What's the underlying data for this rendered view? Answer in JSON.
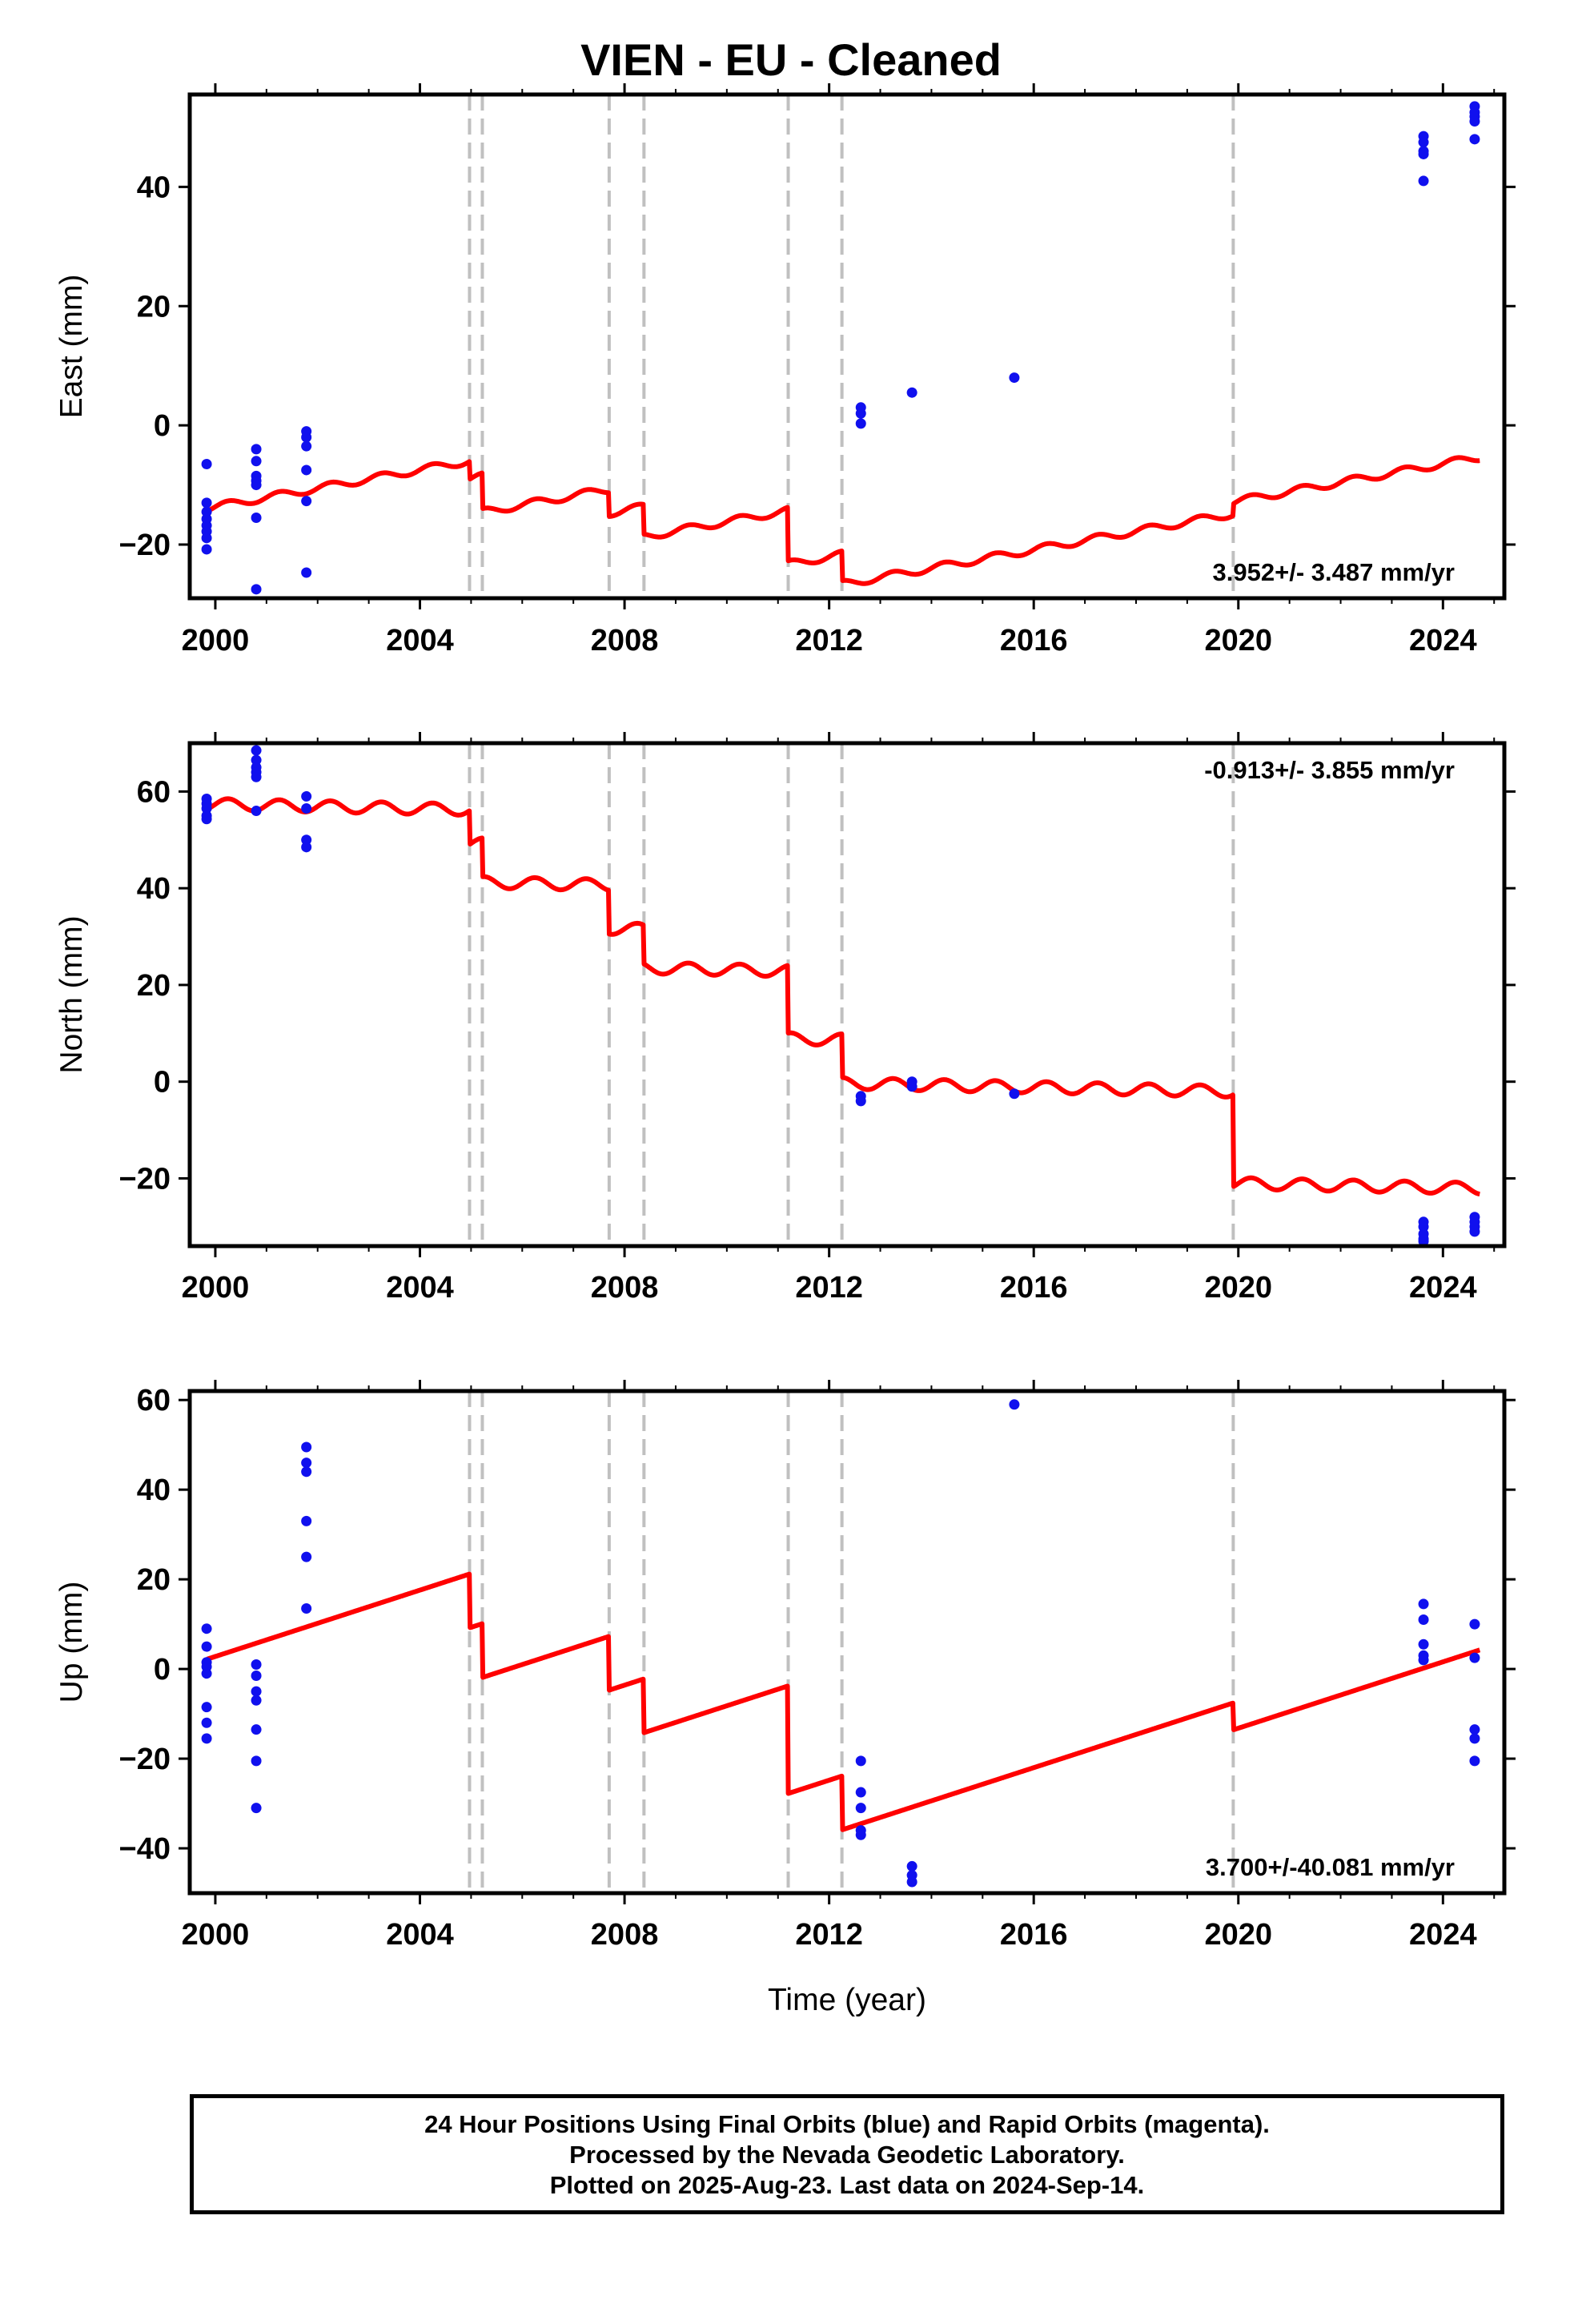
{
  "title": "VIEN  - EU - Cleaned",
  "xlabel": "Time (year)",
  "footer": {
    "line1": "24 Hour Positions Using Final Orbits (blue) and Rapid Orbits (magenta).",
    "line2": "Processed by the Nevada Geodetic Laboratory.",
    "line3": "Plotted on 2025-Aug-23. Last data on 2024-Sep-14."
  },
  "colors": {
    "data": "#1010ee",
    "model": "#ff0000",
    "step_lines": "#c0c0c0",
    "frame": "#000000"
  },
  "chart_data": [
    {
      "type": "scatter",
      "component": "east",
      "ylabel": "East (mm)",
      "rate": "3.952+/- 3.487 mm/yr",
      "rate_position": "bottom-right",
      "xlim": [
        1999.5,
        2025.2
      ],
      "ylim": [
        -29,
        55.5
      ],
      "x_ticks": [
        2000,
        2004,
        2008,
        2012,
        2016,
        2020,
        2024
      ],
      "y_ticks": [
        -20,
        0,
        20,
        40
      ],
      "step_epochs": [
        2004.97,
        2005.22,
        2007.7,
        2008.38,
        2011.2,
        2012.25,
        2019.9
      ],
      "model": {
        "rate": 1.55,
        "intercept": -13.9,
        "offsets": [
          -3,
          -6,
          -4,
          -5,
          -9,
          -5,
          2
        ],
        "seasonal_amplitude": 0.6,
        "start": 1999.84,
        "end": 2024.72
      },
      "points": [
        [
          1999.83,
          -6.5
        ],
        [
          1999.83,
          -13.0
        ],
        [
          1999.83,
          -14.5
        ],
        [
          1999.83,
          -15.7
        ],
        [
          1999.83,
          -16.8
        ],
        [
          1999.83,
          -17.8
        ],
        [
          1999.83,
          -18.9
        ],
        [
          1999.83,
          -20.8
        ],
        [
          2000.8,
          -4.0
        ],
        [
          2000.8,
          -6.0
        ],
        [
          2000.8,
          -8.5
        ],
        [
          2000.8,
          -9.3
        ],
        [
          2000.8,
          -10.0
        ],
        [
          2000.8,
          -15.5
        ],
        [
          2000.8,
          -27.5
        ],
        [
          2001.78,
          -1.0
        ],
        [
          2001.78,
          -2.0
        ],
        [
          2001.78,
          -3.5
        ],
        [
          2001.78,
          -7.5
        ],
        [
          2001.78,
          -12.7
        ],
        [
          2001.78,
          -24.7
        ],
        [
          2012.62,
          3.0
        ],
        [
          2012.62,
          2.0
        ],
        [
          2012.62,
          0.3
        ],
        [
          2013.62,
          5.5
        ],
        [
          2015.62,
          8.0
        ],
        [
          2023.62,
          48.5
        ],
        [
          2023.62,
          47.5
        ],
        [
          2023.62,
          46.0
        ],
        [
          2023.62,
          45.5
        ],
        [
          2023.62,
          41.0
        ],
        [
          2024.62,
          53.5
        ],
        [
          2024.62,
          52.5
        ],
        [
          2024.62,
          51.8
        ],
        [
          2024.62,
          51.0
        ],
        [
          2024.62,
          48.0
        ]
      ]
    },
    {
      "type": "scatter",
      "component": "north",
      "ylabel": "North (mm)",
      "rate": "-0.913+/- 3.855 mm/yr",
      "rate_position": "top-right",
      "xlim": [
        1999.5,
        2025.2
      ],
      "ylim": [
        -34,
        70
      ],
      "x_ticks": [
        2000,
        2004,
        2008,
        2012,
        2016,
        2020,
        2024
      ],
      "y_ticks": [
        -20,
        0,
        20,
        40,
        60
      ],
      "step_epochs": [
        2004.97,
        2005.22,
        2007.7,
        2008.38,
        2011.2,
        2012.25,
        2019.9
      ],
      "model": {
        "rate": -0.22,
        "intercept": 57.4,
        "offsets": [
          -7,
          -8,
          -9,
          -8,
          -14,
          -9,
          -19
        ],
        "seasonal_amplitude": 1.2,
        "start": 1999.84,
        "end": 2024.72
      },
      "points": [
        [
          1999.83,
          58.5
        ],
        [
          1999.83,
          57.5
        ],
        [
          1999.83,
          56.5
        ],
        [
          1999.83,
          55.0
        ],
        [
          1999.83,
          54.3
        ],
        [
          2000.8,
          68.5
        ],
        [
          2000.8,
          66.5
        ],
        [
          2000.8,
          65.0
        ],
        [
          2000.8,
          64.0
        ],
        [
          2000.8,
          63.0
        ],
        [
          2000.8,
          56.0
        ],
        [
          2001.78,
          59.0
        ],
        [
          2001.78,
          56.5
        ],
        [
          2001.78,
          50.0
        ],
        [
          2001.78,
          48.5
        ],
        [
          2012.62,
          -3.0
        ],
        [
          2012.62,
          -4.0
        ],
        [
          2013.62,
          0.0
        ],
        [
          2013.62,
          -1.0
        ],
        [
          2015.62,
          -2.5
        ],
        [
          2023.62,
          -29.0
        ],
        [
          2023.62,
          -30.0
        ],
        [
          2023.62,
          -31.5
        ],
        [
          2023.62,
          -32.5
        ],
        [
          2023.62,
          -33.0
        ],
        [
          2024.62,
          -28.0
        ],
        [
          2024.62,
          -29.0
        ],
        [
          2024.62,
          -30.0
        ],
        [
          2024.62,
          -31.0
        ]
      ]
    },
    {
      "type": "scatter",
      "component": "up",
      "ylabel": "Up (mm)",
      "rate": "3.700+/-40.081 mm/yr",
      "rate_position": "bottom-right",
      "xlim": [
        1999.5,
        2025.2
      ],
      "ylim": [
        -50,
        62
      ],
      "x_ticks": [
        2000,
        2004,
        2008,
        2012,
        2016,
        2020,
        2024
      ],
      "y_ticks": [
        -40,
        -20,
        0,
        20,
        40,
        60
      ],
      "step_epochs": [
        2004.97,
        2005.22,
        2007.7,
        2008.38,
        2011.2,
        2012.25,
        2019.9
      ],
      "model": {
        "rate": 3.7,
        "intercept": 2.2,
        "offsets": [
          -12,
          -12,
          -12,
          -12,
          -24,
          -12,
          -6
        ],
        "seasonal_amplitude": 0.0,
        "start": 1999.84,
        "end": 2024.72
      },
      "points": [
        [
          1999.83,
          9.0
        ],
        [
          1999.83,
          5.0
        ],
        [
          1999.83,
          1.5
        ],
        [
          1999.83,
          0.5
        ],
        [
          1999.83,
          -1.0
        ],
        [
          1999.83,
          -8.5
        ],
        [
          1999.83,
          -12.0
        ],
        [
          1999.83,
          -15.5
        ],
        [
          2000.8,
          1.0
        ],
        [
          2000.8,
          -1.5
        ],
        [
          2000.8,
          -5.0
        ],
        [
          2000.8,
          -7.0
        ],
        [
          2000.8,
          -13.5
        ],
        [
          2000.8,
          -20.5
        ],
        [
          2000.8,
          -31.0
        ],
        [
          2001.78,
          49.5
        ],
        [
          2001.78,
          46.0
        ],
        [
          2001.78,
          44.0
        ],
        [
          2001.78,
          33.0
        ],
        [
          2001.78,
          25.0
        ],
        [
          2001.78,
          13.5
        ],
        [
          2012.62,
          -20.5
        ],
        [
          2012.62,
          -27.5
        ],
        [
          2012.62,
          -31.0
        ],
        [
          2012.62,
          -36.0
        ],
        [
          2012.62,
          -37.0
        ],
        [
          2013.62,
          -44.0
        ],
        [
          2013.62,
          -46.0
        ],
        [
          2013.62,
          -47.5
        ],
        [
          2015.62,
          59.0
        ],
        [
          2023.62,
          14.5
        ],
        [
          2023.62,
          11.0
        ],
        [
          2023.62,
          5.5
        ],
        [
          2023.62,
          3.0
        ],
        [
          2023.62,
          2.0
        ],
        [
          2024.62,
          10.0
        ],
        [
          2024.62,
          2.5
        ],
        [
          2024.62,
          -13.5
        ],
        [
          2024.62,
          -15.5
        ],
        [
          2024.62,
          -20.5
        ]
      ]
    }
  ]
}
